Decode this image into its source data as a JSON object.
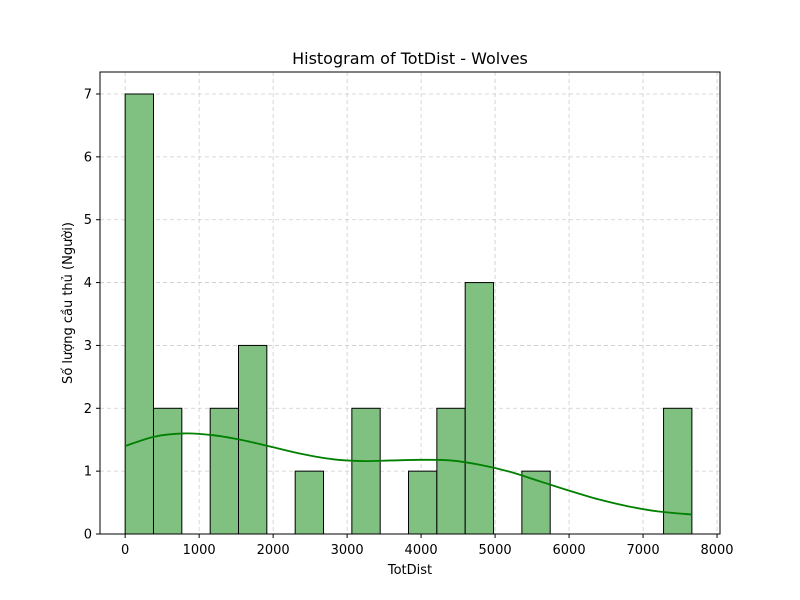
{
  "chart_data": {
    "type": "bar",
    "title": "Histogram of TotDist - Wolves",
    "xlabel": "TotDist",
    "ylabel": "Số lượng cầu thủ (Người)",
    "xlim": [
      -340,
      8040
    ],
    "ylim": [
      0,
      7.35
    ],
    "xticks": [
      0,
      1000,
      2000,
      3000,
      4000,
      5000,
      6000,
      7000,
      8000
    ],
    "yticks": [
      0,
      1,
      2,
      3,
      4,
      5,
      6,
      7
    ],
    "grid": true,
    "bar_color": "#80c080",
    "bar_edge_color": "#000000",
    "kde_color": "#008000",
    "bins": [
      {
        "x0": 0,
        "x1": 383,
        "count": 7
      },
      {
        "x0": 383,
        "x1": 766,
        "count": 2
      },
      {
        "x0": 766,
        "x1": 1149,
        "count": 0
      },
      {
        "x0": 1149,
        "x1": 1532,
        "count": 2
      },
      {
        "x0": 1532,
        "x1": 1915,
        "count": 3
      },
      {
        "x0": 1915,
        "x1": 2298,
        "count": 0
      },
      {
        "x0": 2298,
        "x1": 2681,
        "count": 1
      },
      {
        "x0": 2681,
        "x1": 3064,
        "count": 0
      },
      {
        "x0": 3064,
        "x1": 3447,
        "count": 2
      },
      {
        "x0": 3447,
        "x1": 3830,
        "count": 0
      },
      {
        "x0": 3830,
        "x1": 4213,
        "count": 1
      },
      {
        "x0": 4213,
        "x1": 4596,
        "count": 2
      },
      {
        "x0": 4596,
        "x1": 4979,
        "count": 4
      },
      {
        "x0": 4979,
        "x1": 5362,
        "count": 0
      },
      {
        "x0": 5362,
        "x1": 5745,
        "count": 1
      },
      {
        "x0": 5745,
        "x1": 6128,
        "count": 0
      },
      {
        "x0": 6128,
        "x1": 6511,
        "count": 0
      },
      {
        "x0": 6511,
        "x1": 6894,
        "count": 0
      },
      {
        "x0": 6894,
        "x1": 7277,
        "count": 0
      },
      {
        "x0": 7277,
        "x1": 7660,
        "count": 2
      }
    ],
    "kde": [
      [
        0,
        1.4
      ],
      [
        400,
        1.55
      ],
      [
        800,
        1.6
      ],
      [
        1200,
        1.57
      ],
      [
        1600,
        1.49
      ],
      [
        2000,
        1.38
      ],
      [
        2400,
        1.27
      ],
      [
        2800,
        1.19
      ],
      [
        3200,
        1.16
      ],
      [
        3600,
        1.17
      ],
      [
        4000,
        1.18
      ],
      [
        4400,
        1.17
      ],
      [
        4800,
        1.1
      ],
      [
        5200,
        0.99
      ],
      [
        5600,
        0.84
      ],
      [
        6000,
        0.69
      ],
      [
        6400,
        0.55
      ],
      [
        6800,
        0.44
      ],
      [
        7200,
        0.36
      ],
      [
        7660,
        0.31
      ]
    ]
  }
}
